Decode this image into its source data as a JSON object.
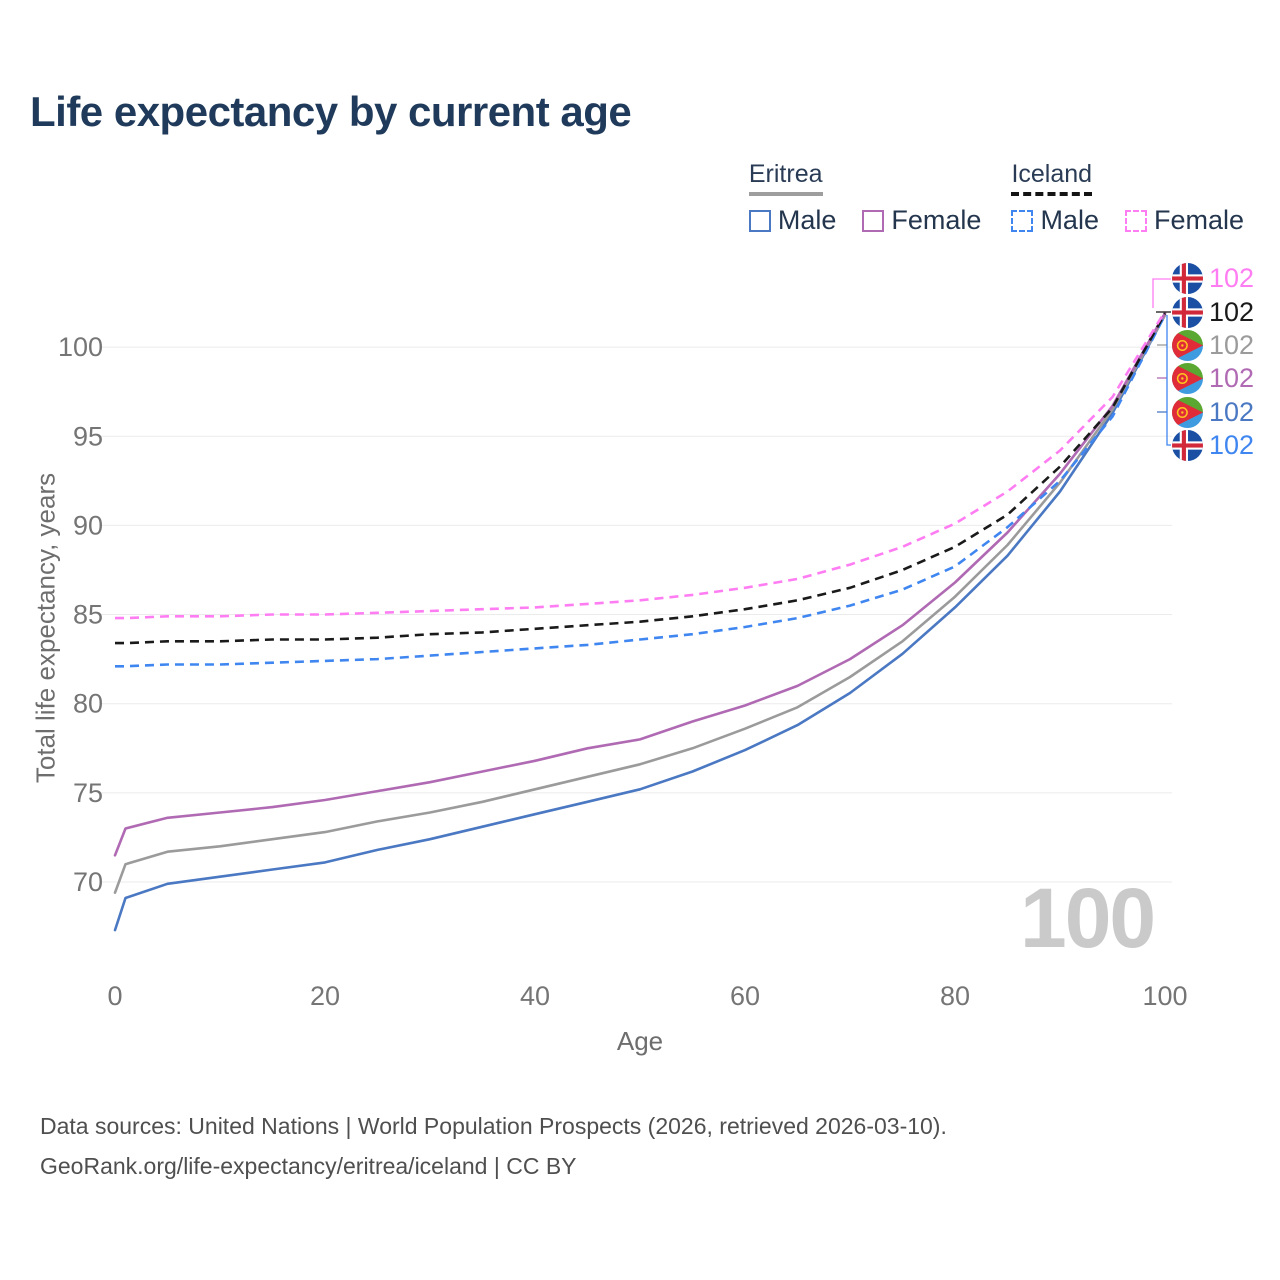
{
  "title": "Life expectancy by current age",
  "legend": {
    "groups": [
      {
        "name": "Eritrea",
        "line_style": "solid",
        "line_color": "#9e9e9e",
        "items": [
          {
            "label": "Male",
            "color": "#4a78c2",
            "dashed": false
          },
          {
            "label": "Female",
            "color": "#b06ab3",
            "dashed": false
          }
        ]
      },
      {
        "name": "Iceland",
        "line_style": "dashed",
        "line_color": "#141414",
        "items": [
          {
            "label": "Male",
            "color": "#3f86f0",
            "dashed": true
          },
          {
            "label": "Female",
            "color": "#ff7df2",
            "dashed": true
          }
        ]
      }
    ]
  },
  "right_labels": [
    {
      "flag": "iceland",
      "value": "102",
      "color": "#ff7df2",
      "series": "Iceland Female"
    },
    {
      "flag": "iceland",
      "value": "102",
      "color": "#1a1a1a",
      "series": "Iceland"
    },
    {
      "flag": "eritrea",
      "value": "102",
      "color": "#9b9b9b",
      "series": "Eritrea"
    },
    {
      "flag": "eritrea",
      "value": "102",
      "color": "#b06ab3",
      "series": "Eritrea Female"
    },
    {
      "flag": "eritrea",
      "value": "102",
      "color": "#4a78c2",
      "series": "Eritrea Male"
    },
    {
      "flag": "iceland",
      "value": "102",
      "color": "#3f86f0",
      "series": "Iceland Male"
    }
  ],
  "watermark": "100",
  "footer": {
    "line1": "Data sources: United Nations | World Population Prospects (2026, retrieved 2026-03-10).",
    "line2": "GeoRank.org/life-expectancy/eritrea/iceland | CC BY"
  },
  "chart_data": {
    "type": "line",
    "title": "Life expectancy by current age",
    "xlabel": "Age",
    "ylabel": "Total life expectancy, years",
    "xlim": [
      0,
      100
    ],
    "ylim": [
      66,
      103
    ],
    "xticks": [
      0,
      20,
      40,
      60,
      80,
      100
    ],
    "yticks": [
      70,
      75,
      80,
      85,
      90,
      95,
      100
    ],
    "grid": "horizontal",
    "legend_position": "top-right",
    "x": [
      0,
      1,
      5,
      10,
      15,
      20,
      25,
      30,
      35,
      40,
      45,
      50,
      55,
      60,
      65,
      70,
      75,
      80,
      85,
      90,
      95,
      100
    ],
    "series": [
      {
        "id": "eritrea_male",
        "name": "Eritrea Male",
        "country": "Eritrea",
        "sex": "Male",
        "color": "#4a78c2",
        "dashed": false,
        "end_label": "102",
        "values": [
          67.3,
          69.1,
          69.9,
          70.3,
          70.7,
          71.1,
          71.8,
          72.4,
          73.1,
          73.8,
          74.5,
          75.2,
          76.2,
          77.4,
          78.8,
          80.6,
          82.8,
          85.4,
          88.3,
          91.9,
          96.3,
          101.8
        ]
      },
      {
        "id": "eritrea_total",
        "name": "Eritrea",
        "country": "Eritrea",
        "sex": "Both",
        "color": "#9b9b9b",
        "dashed": false,
        "end_label": "102",
        "values": [
          69.4,
          71.0,
          71.7,
          72.0,
          72.4,
          72.8,
          73.4,
          73.9,
          74.5,
          75.2,
          75.9,
          76.6,
          77.5,
          78.6,
          79.8,
          81.5,
          83.5,
          86.0,
          88.9,
          92.4,
          96.5,
          101.8
        ]
      },
      {
        "id": "eritrea_female",
        "name": "Eritrea Female",
        "country": "Eritrea",
        "sex": "Female",
        "color": "#b06ab3",
        "dashed": false,
        "end_label": "102",
        "values": [
          71.5,
          73.0,
          73.6,
          73.9,
          74.2,
          74.6,
          75.1,
          75.6,
          76.2,
          76.8,
          77.5,
          78.0,
          79.0,
          79.9,
          81.0,
          82.5,
          84.4,
          86.8,
          89.6,
          92.9,
          96.7,
          101.9
        ]
      },
      {
        "id": "iceland_male",
        "name": "Iceland Male",
        "country": "Iceland",
        "sex": "Male",
        "color": "#3f86f0",
        "dashed": true,
        "end_label": "102",
        "values": [
          82.1,
          82.1,
          82.2,
          82.2,
          82.3,
          82.4,
          82.5,
          82.7,
          82.9,
          83.1,
          83.3,
          83.6,
          83.9,
          84.3,
          84.8,
          85.5,
          86.4,
          87.7,
          89.9,
          92.5,
          96.1,
          101.8
        ]
      },
      {
        "id": "iceland_total",
        "name": "Iceland",
        "country": "Iceland",
        "sex": "Both",
        "color": "#1a1a1a",
        "dashed": true,
        "end_label": "102",
        "values": [
          83.4,
          83.4,
          83.5,
          83.5,
          83.6,
          83.6,
          83.7,
          83.9,
          84.0,
          84.2,
          84.4,
          84.6,
          84.9,
          85.3,
          85.8,
          86.5,
          87.5,
          88.8,
          90.6,
          93.3,
          96.6,
          101.9
        ]
      },
      {
        "id": "iceland_female",
        "name": "Iceland Female",
        "country": "Iceland",
        "sex": "Female",
        "color": "#ff7df2",
        "dashed": true,
        "end_label": "102",
        "values": [
          84.8,
          84.8,
          84.9,
          84.9,
          85.0,
          85.0,
          85.1,
          85.2,
          85.3,
          85.4,
          85.6,
          85.8,
          86.1,
          86.5,
          87.0,
          87.8,
          88.8,
          90.1,
          91.9,
          94.2,
          97.2,
          102.0
        ]
      }
    ]
  }
}
